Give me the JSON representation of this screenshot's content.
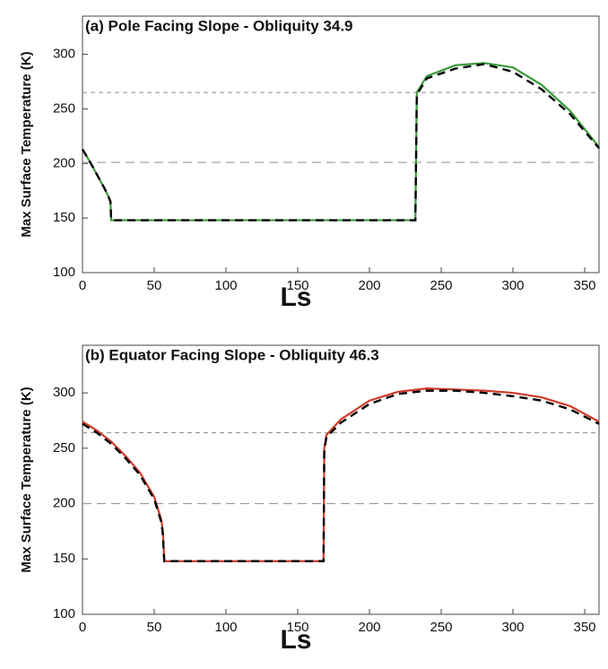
{
  "chart_data": [
    {
      "type": "line",
      "title": "(a) Pole Facing Slope - Obliquity 34.9",
      "xlabel": "Ls",
      "ylabel": "Max Surface Temperature (K)",
      "x": [
        0,
        5,
        10,
        15,
        18,
        19.5,
        20,
        100,
        232,
        233,
        240,
        260,
        280,
        300,
        320,
        340,
        360
      ],
      "series": [
        {
          "color": "#3a9a3a",
          "style": "solid",
          "values": [
            213,
            202,
            190,
            178,
            170,
            165,
            148,
            148,
            148,
            265,
            280,
            290,
            292,
            288,
            272,
            248,
            215
          ]
        },
        {
          "color": "#000000",
          "style": "dashed",
          "values": [
            213,
            202,
            190,
            178,
            170,
            165,
            148,
            148,
            148,
            263,
            278,
            287,
            291,
            284,
            268,
            245,
            214
          ]
        }
      ],
      "reference_lines": [
        265,
        201
      ],
      "reference_color": "#999999",
      "xlim": [
        0,
        360
      ],
      "xticks": [
        0,
        50,
        100,
        150,
        200,
        250,
        300,
        350
      ],
      "ylim": [
        100,
        335
      ],
      "yticks": [
        100,
        150,
        200,
        250,
        300
      ]
    },
    {
      "type": "line",
      "title": "(b) Equator Facing Slope - Obliquity 46.3",
      "xlabel": "Ls",
      "ylabel": "Max Surface Temperature (K)",
      "x": [
        0,
        10,
        20,
        30,
        40,
        50,
        55,
        56,
        57,
        168,
        168.5,
        170,
        180,
        200,
        220,
        240,
        260,
        280,
        300,
        320,
        340,
        360
      ],
      "series": [
        {
          "color": "#d03a2a",
          "style": "solid",
          "values": [
            274,
            266,
            256,
            243,
            228,
            206,
            185,
            175,
            148,
            148,
            250,
            262,
            276,
            293,
            301,
            304,
            303,
            302,
            300,
            296,
            288,
            274
          ]
        },
        {
          "color": "#000000",
          "style": "dashed",
          "values": [
            272,
            264,
            254,
            241,
            226,
            204,
            183,
            172,
            148,
            148,
            248,
            260,
            273,
            290,
            299,
            302,
            302,
            300,
            297,
            293,
            285,
            272
          ]
        }
      ],
      "reference_lines": [
        264,
        200
      ],
      "reference_color": "#999999",
      "xlim": [
        0,
        360
      ],
      "xticks": [
        0,
        50,
        100,
        150,
        200,
        250,
        300,
        350
      ],
      "ylim": [
        100,
        343
      ],
      "yticks": [
        100,
        150,
        200,
        250,
        300
      ]
    }
  ]
}
